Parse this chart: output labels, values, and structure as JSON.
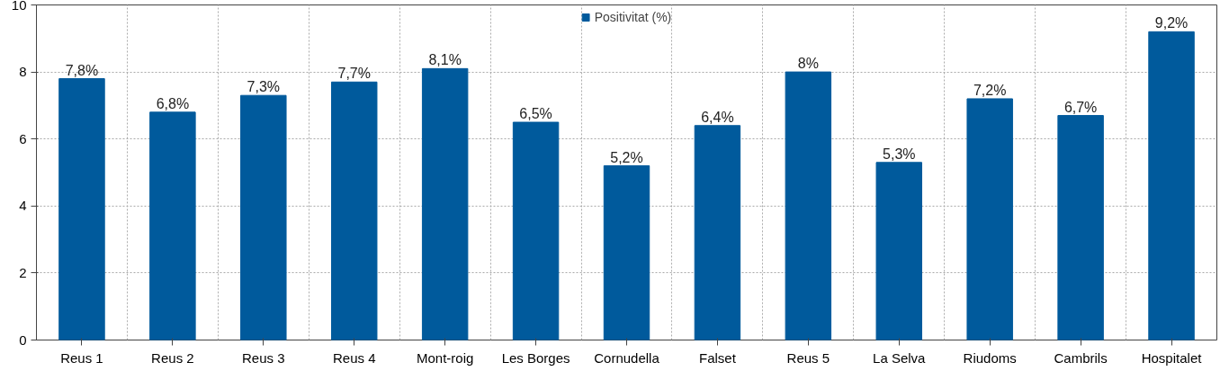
{
  "chart_data": {
    "type": "bar",
    "categories": [
      "Reus 1",
      "Reus 2",
      "Reus 3",
      "Reus 4",
      "Mont-roig",
      "Les Borges",
      "Cornudella",
      "Falset",
      "Reus 5",
      "La Selva",
      "Riudoms",
      "Cambrils",
      "Hospitalet"
    ],
    "series": [
      {
        "name": "Positivitat (%)",
        "color": "#005a9c",
        "values": [
          7.8,
          6.8,
          7.3,
          7.7,
          8.1,
          6.5,
          5.2,
          6.4,
          8,
          5.3,
          7.2,
          6.7,
          9.2
        ],
        "value_labels": [
          "7,8%",
          "6,8%",
          "7,3%",
          "7,7%",
          "8,1%",
          "6,5%",
          "5,2%",
          "6,4%",
          "8%",
          "5,3%",
          "7,2%",
          "6,7%",
          "9,2%"
        ]
      }
    ],
    "ylim": [
      0,
      10
    ],
    "yticks": [
      0,
      2,
      4,
      6,
      8,
      10
    ],
    "grid": true,
    "legend": "top"
  }
}
